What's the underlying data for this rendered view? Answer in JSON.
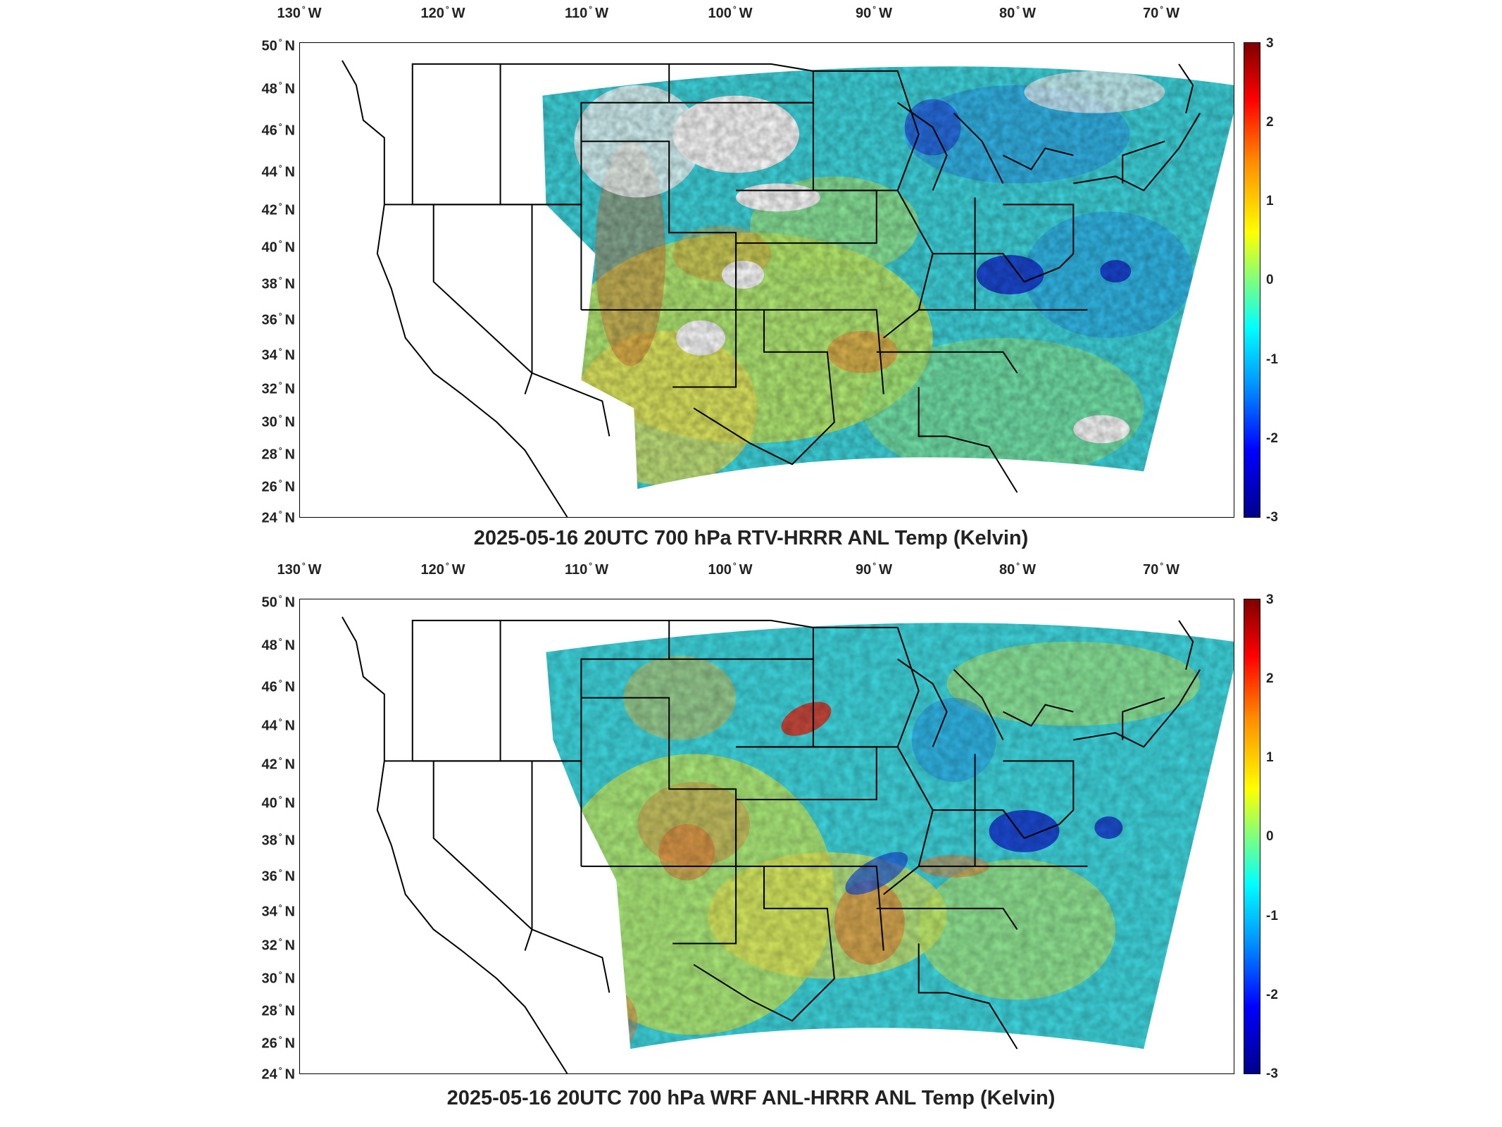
{
  "panels": [
    {
      "title": "2025-05-16 20UTC 700 hPa RTV-HRRR ANL Temp (Kelvin)",
      "lon_labels": [
        "130",
        "120",
        "110",
        "100",
        "90",
        "80",
        "70"
      ],
      "lon_hemi": "W",
      "lat_labels": [
        "50",
        "48",
        "46",
        "44",
        "42",
        "40",
        "38",
        "36",
        "34",
        "32",
        "30",
        "28",
        "26",
        "24"
      ],
      "lat_hemi": "N",
      "colorbar_ticks": [
        "3",
        "2",
        "1",
        "0",
        "-1",
        "-2",
        "-3"
      ]
    },
    {
      "title": "2025-05-16 20UTC 700 hPa WRF ANL-HRRR ANL Temp (Kelvin)",
      "lon_labels": [
        "130",
        "120",
        "110",
        "100",
        "90",
        "80",
        "70"
      ],
      "lon_hemi": "W",
      "lat_labels": [
        "50",
        "48",
        "46",
        "44",
        "42",
        "40",
        "38",
        "36",
        "34",
        "32",
        "30",
        "28",
        "26",
        "24"
      ],
      "lat_hemi": "N",
      "colorbar_ticks": [
        "3",
        "2",
        "1",
        "0",
        "-1",
        "-2",
        "-3"
      ]
    }
  ],
  "colorbar": {
    "min": -3,
    "max": 3,
    "colormap": "jet",
    "colors": [
      "#800000",
      "#ff0000",
      "#ff8c00",
      "#ffff00",
      "#7fff7f",
      "#00ffff",
      "#0096ff",
      "#0000ff",
      "#00008b"
    ]
  },
  "map_extent": {
    "lon": [
      -130,
      -65
    ],
    "lat": [
      24,
      50
    ]
  }
}
